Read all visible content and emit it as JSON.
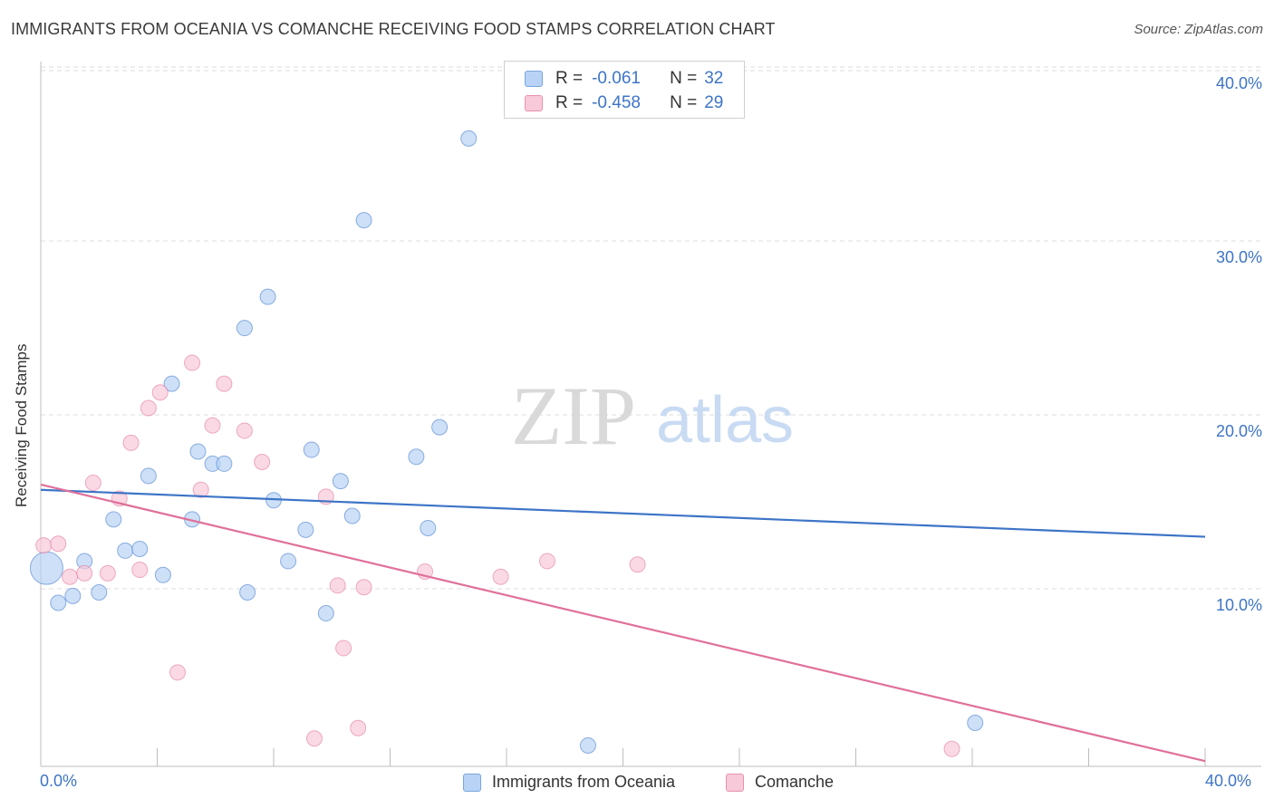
{
  "header": {
    "title": "IMMIGRANTS FROM OCEANIA VS COMANCHE RECEIVING FOOD STAMPS CORRELATION CHART",
    "source": "Source: ZipAtlas.com"
  },
  "watermark": {
    "zip": "ZIP",
    "atlas": "atlas"
  },
  "legend_top": {
    "rows": [
      {
        "r_label": "R =",
        "r_value": "-0.061",
        "n_label": "N =",
        "n_value": "32",
        "color": "#b8d3f5",
        "border": "#7aa6dd"
      },
      {
        "r_label": "R =",
        "r_value": "-0.458",
        "n_label": "N =",
        "n_value": "29",
        "color": "#f8c9d8",
        "border": "#e892ad"
      }
    ]
  },
  "legend_bottom": {
    "items": [
      {
        "label": "Immigrants from Oceania",
        "color": "#b8d3f5",
        "border": "#7aa6dd"
      },
      {
        "label": "Comanche",
        "color": "#f8c9d8",
        "border": "#e892ad"
      }
    ]
  },
  "chart_data": {
    "type": "scatter",
    "title": "IMMIGRANTS FROM OCEANIA VS COMANCHE RECEIVING FOOD STAMPS CORRELATION CHART",
    "xlabel": "",
    "ylabel": "Receiving Food Stamps",
    "xlim": [
      0,
      40
    ],
    "ylim": [
      0,
      40
    ],
    "x_tick_labels": [
      "0.0%",
      "40.0%"
    ],
    "y_ticks": [
      10,
      20,
      30,
      40
    ],
    "y_tick_labels": [
      "10.0%",
      "20.0%",
      "30.0%",
      "40.0%"
    ],
    "grid": "horizontal dashed",
    "legend_placement": "top-center",
    "colors": {
      "series_1": "#3d74c7",
      "series_2": "#e0709a"
    },
    "series": [
      {
        "name": "Immigrants from Oceania",
        "color": "#3d74c7",
        "fill": "#b8d3f5",
        "trend": {
          "x": [
            0,
            40
          ],
          "y": [
            15.9,
            13.2
          ]
        },
        "points": [
          {
            "x": 0.2,
            "y": 11.4,
            "big": true
          },
          {
            "x": 0.6,
            "y": 9.4
          },
          {
            "x": 1.1,
            "y": 9.8
          },
          {
            "x": 1.5,
            "y": 11.8
          },
          {
            "x": 2.0,
            "y": 10.0
          },
          {
            "x": 2.5,
            "y": 14.2
          },
          {
            "x": 2.9,
            "y": 12.4
          },
          {
            "x": 3.4,
            "y": 12.5
          },
          {
            "x": 3.7,
            "y": 16.7
          },
          {
            "x": 4.2,
            "y": 11.0
          },
          {
            "x": 4.5,
            "y": 22.0
          },
          {
            "x": 5.2,
            "y": 14.2
          },
          {
            "x": 5.4,
            "y": 18.1
          },
          {
            "x": 5.9,
            "y": 17.4
          },
          {
            "x": 6.3,
            "y": 17.4
          },
          {
            "x": 7.0,
            "y": 25.2
          },
          {
            "x": 7.1,
            "y": 10.0
          },
          {
            "x": 7.8,
            "y": 27.0
          },
          {
            "x": 8.0,
            "y": 15.3
          },
          {
            "x": 8.5,
            "y": 11.8
          },
          {
            "x": 9.1,
            "y": 13.6
          },
          {
            "x": 9.3,
            "y": 18.2
          },
          {
            "x": 9.8,
            "y": 8.8
          },
          {
            "x": 10.3,
            "y": 16.4
          },
          {
            "x": 10.7,
            "y": 14.4
          },
          {
            "x": 11.1,
            "y": 31.4
          },
          {
            "x": 12.9,
            "y": 17.8
          },
          {
            "x": 13.3,
            "y": 13.7
          },
          {
            "x": 13.7,
            "y": 19.5
          },
          {
            "x": 14.7,
            "y": 36.1
          },
          {
            "x": 18.8,
            "y": 1.2
          },
          {
            "x": 32.1,
            "y": 2.5
          }
        ]
      },
      {
        "name": "Comanche",
        "color": "#e0709a",
        "fill": "#f8c9d8",
        "trend": {
          "x": [
            0,
            40
          ],
          "y": [
            16.2,
            0.3
          ]
        },
        "points": [
          {
            "x": 0.1,
            "y": 12.7
          },
          {
            "x": 0.6,
            "y": 12.8
          },
          {
            "x": 1.0,
            "y": 10.9
          },
          {
            "x": 1.5,
            "y": 11.1
          },
          {
            "x": 1.8,
            "y": 16.3
          },
          {
            "x": 2.3,
            "y": 11.1
          },
          {
            "x": 2.7,
            "y": 15.4
          },
          {
            "x": 3.1,
            "y": 18.6
          },
          {
            "x": 3.4,
            "y": 11.3
          },
          {
            "x": 3.7,
            "y": 20.6
          },
          {
            "x": 4.1,
            "y": 21.5
          },
          {
            "x": 4.7,
            "y": 5.4
          },
          {
            "x": 5.2,
            "y": 23.2
          },
          {
            "x": 5.5,
            "y": 15.9
          },
          {
            "x": 5.9,
            "y": 19.6
          },
          {
            "x": 6.3,
            "y": 22.0
          },
          {
            "x": 7.0,
            "y": 19.3
          },
          {
            "x": 7.6,
            "y": 17.5
          },
          {
            "x": 9.4,
            "y": 1.6
          },
          {
            "x": 9.8,
            "y": 15.5
          },
          {
            "x": 10.2,
            "y": 10.4
          },
          {
            "x": 10.4,
            "y": 6.8
          },
          {
            "x": 10.9,
            "y": 2.2
          },
          {
            "x": 11.1,
            "y": 10.3
          },
          {
            "x": 13.2,
            "y": 11.2
          },
          {
            "x": 15.8,
            "y": 10.9
          },
          {
            "x": 17.4,
            "y": 11.8
          },
          {
            "x": 20.5,
            "y": 11.6
          },
          {
            "x": 31.3,
            "y": 1.0
          }
        ]
      }
    ]
  }
}
